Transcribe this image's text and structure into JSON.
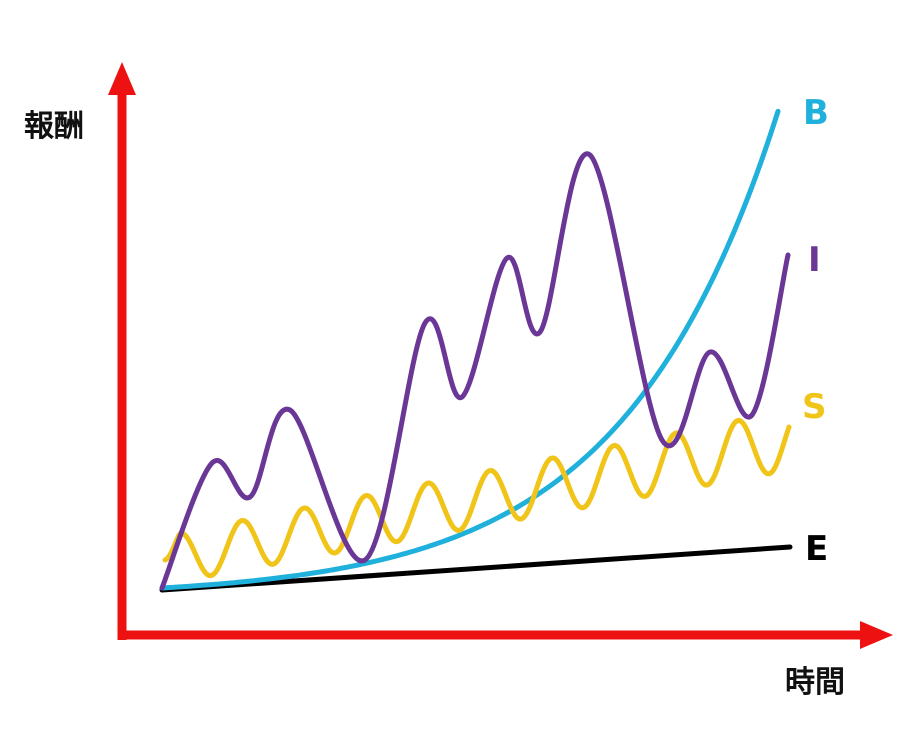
{
  "axes": {
    "y_label": "報酬",
    "x_label": "時間",
    "color": "#ee1111"
  },
  "curves": [
    {
      "key": "B",
      "label": "B",
      "color": "#1fb0dc"
    },
    {
      "key": "I",
      "label": "I",
      "color": "#6a3796"
    },
    {
      "key": "S",
      "label": "S",
      "color": "#f0c419"
    },
    {
      "key": "E",
      "label": "E",
      "color": "#000000"
    }
  ]
}
